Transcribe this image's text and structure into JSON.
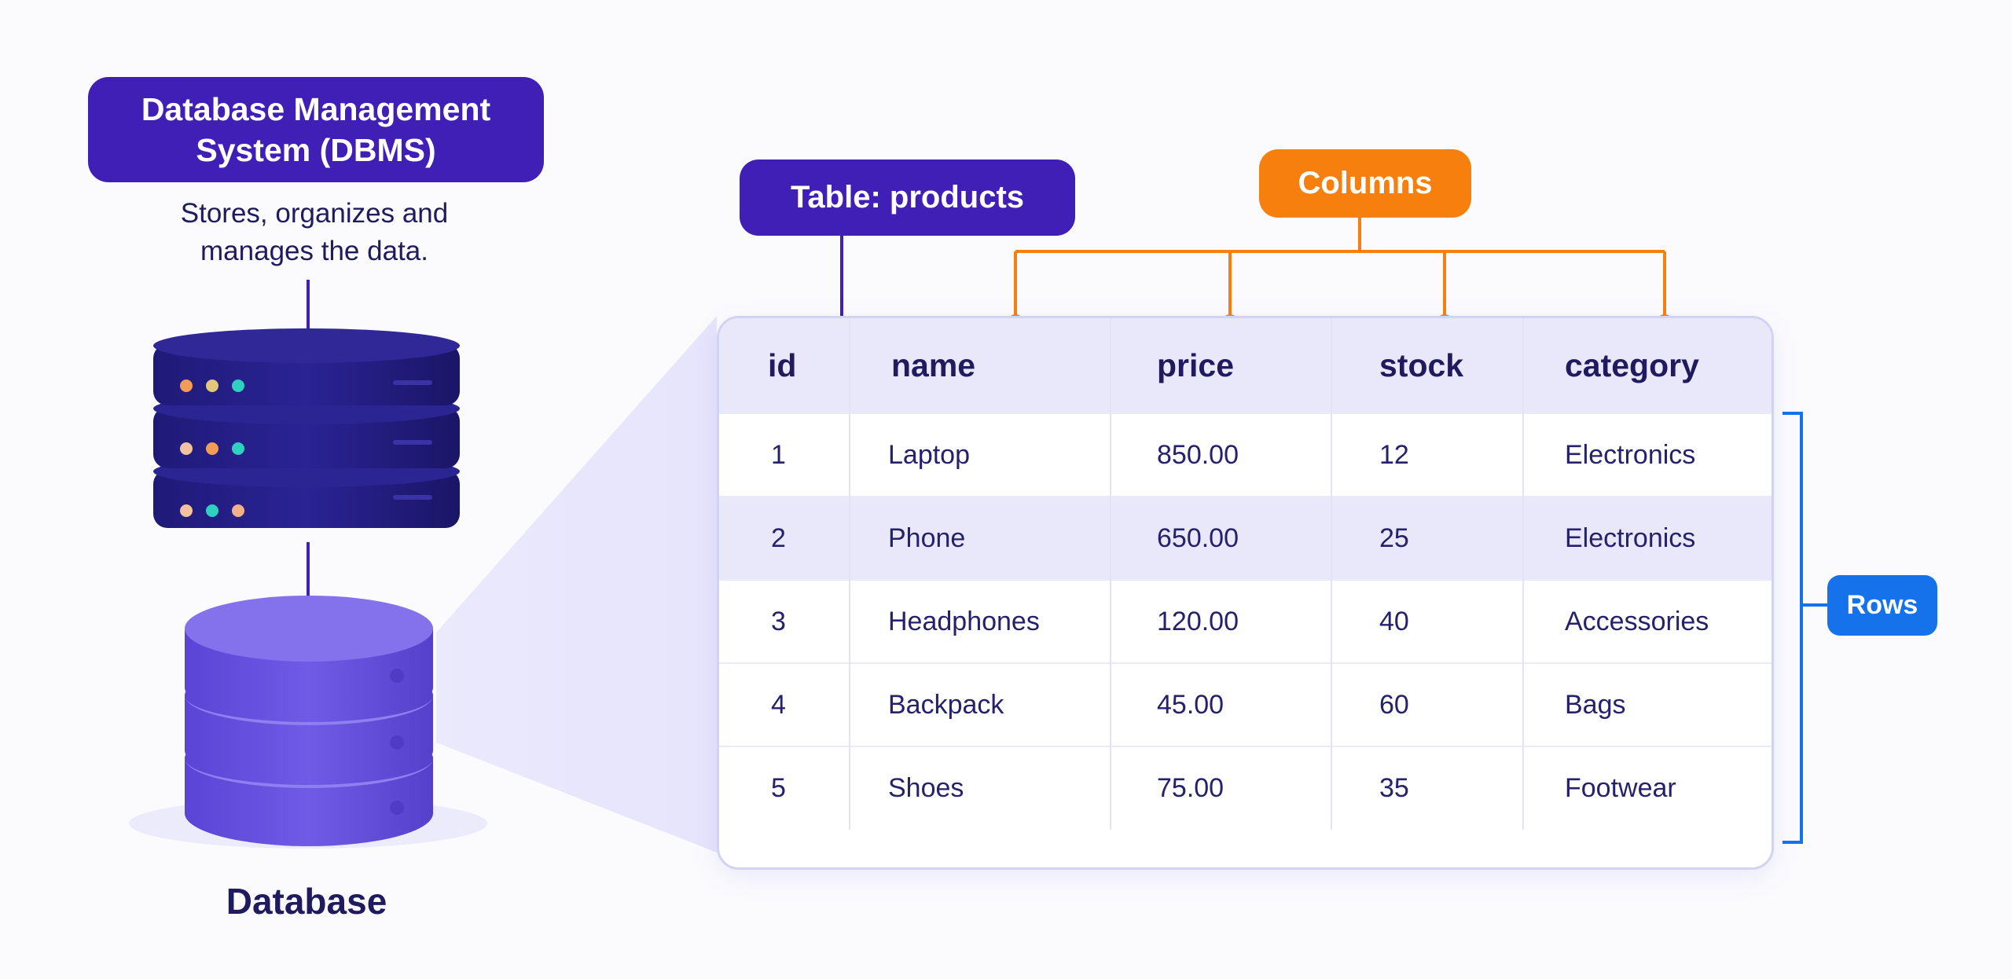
{
  "dbms": {
    "title": "Database Management System (DBMS)",
    "description": "Stores, organizes and manages the data."
  },
  "database": {
    "caption": "Database"
  },
  "table": {
    "label": "Table: products",
    "columns": [
      "id",
      "name",
      "price",
      "stock",
      "category"
    ],
    "rows": [
      [
        "1",
        "Laptop",
        "850.00",
        "12",
        "Electronics"
      ],
      [
        "2",
        "Phone",
        "650.00",
        "25",
        "Electronics"
      ],
      [
        "3",
        "Headphones",
        "120.00",
        "40",
        "Accessories"
      ],
      [
        "4",
        "Backpack",
        "45.00",
        "60",
        "Bags"
      ],
      [
        "5",
        "Shoes",
        "75.00",
        "35",
        "Footwear"
      ]
    ]
  },
  "annotations": {
    "columns": "Columns",
    "rows": "Rows"
  },
  "colors": {
    "primary": "#3f1fb5",
    "columns_accent": "#f77f0e",
    "rows_accent": "#1572eb",
    "server_dark": "#1e1a70",
    "database_purple": "#6b56e0",
    "table_header": "#e9e8fa"
  },
  "icons": [
    "server-stack-icon",
    "database-cylinder-icon"
  ]
}
